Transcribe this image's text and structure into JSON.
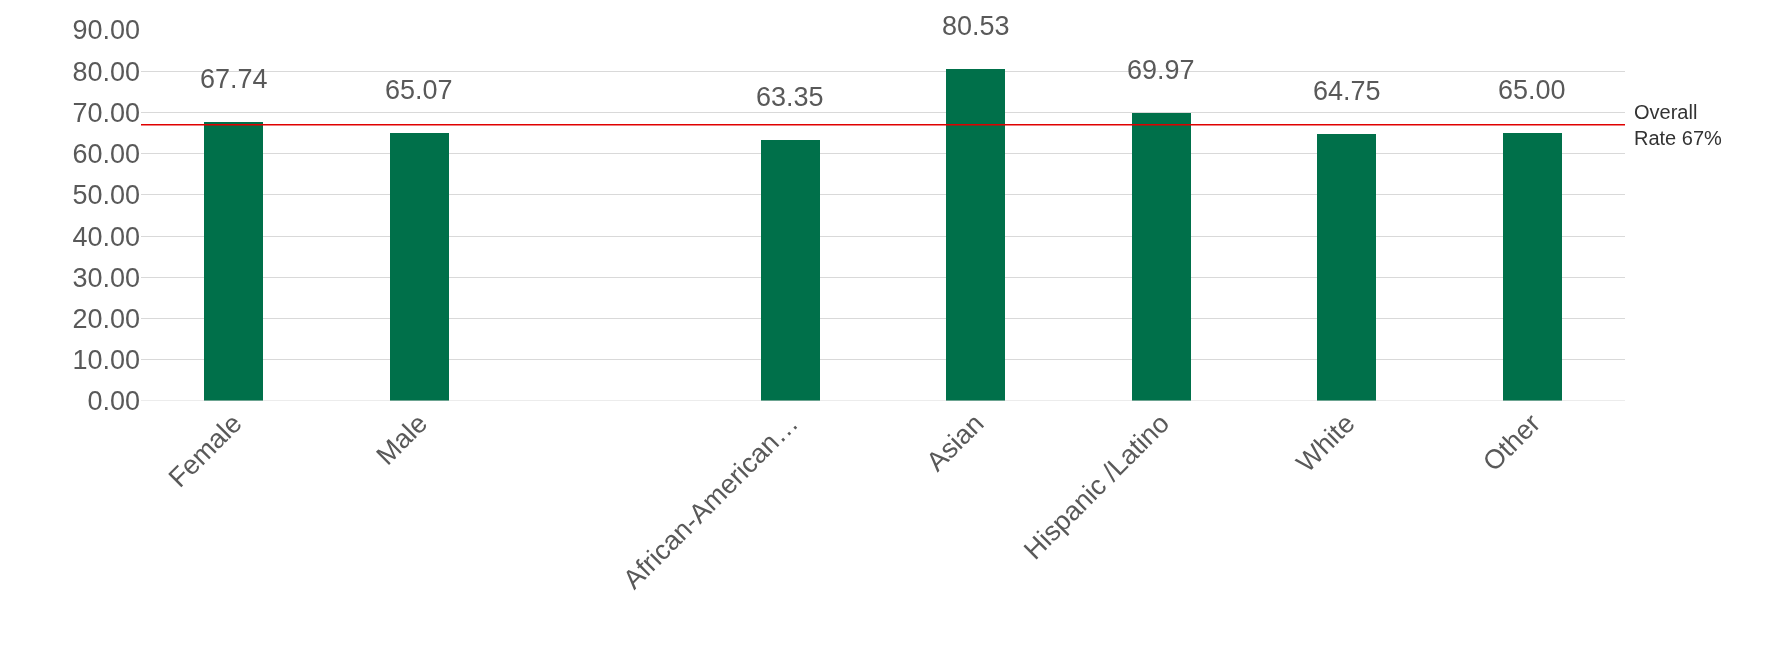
{
  "chart_data": {
    "type": "bar",
    "categories": [
      "Female",
      "Male",
      null,
      "African-American…",
      "Asian",
      "Hispanic /Latino",
      "White",
      "Other"
    ],
    "values": [
      67.74,
      65.07,
      null,
      63.35,
      80.53,
      69.97,
      64.75,
      65.0
    ],
    "value_labels": [
      "67.74",
      "65.07",
      null,
      "63.35",
      "80.53",
      "69.97",
      "64.75",
      "65.00"
    ],
    "color": "#00704a",
    "ylim": [
      0,
      90
    ],
    "yticks": [
      {
        "value": 0,
        "label": "0.00"
      },
      {
        "value": 10,
        "label": "10.00"
      },
      {
        "value": 20,
        "label": "20.00"
      },
      {
        "value": 30,
        "label": "30.00"
      },
      {
        "value": 40,
        "label": "40.00"
      },
      {
        "value": 50,
        "label": "50.00"
      },
      {
        "value": 60,
        "label": "60.00"
      },
      {
        "value": 70,
        "label": "70.00"
      },
      {
        "value": 80,
        "label": "80.00"
      },
      {
        "value": 90,
        "label": "90.00"
      }
    ],
    "grid": "y",
    "ref_lines": [
      {
        "axis": "y",
        "value": 67,
        "label": "Overall Rate 67%",
        "color": "#e00000"
      }
    ]
  }
}
